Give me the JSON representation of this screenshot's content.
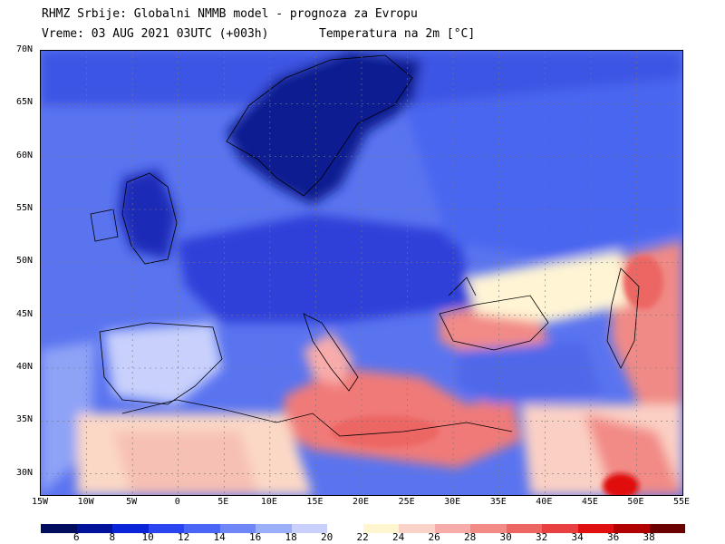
{
  "title": {
    "line1": "RHMZ Srbije: Globalni NMMB model - prognoza za Evropu",
    "line2": "Vreme: 03 AUG 2021 03UTC (+003h)",
    "variable": "Temperatura na 2m [°C]"
  },
  "map": {
    "lon_labels": [
      "15W",
      "10W",
      "5W",
      "0",
      "5E",
      "10E",
      "15E",
      "20E",
      "25E",
      "30E",
      "35E",
      "40E",
      "45E",
      "50E",
      "55E"
    ],
    "lat_labels": [
      "70N",
      "65N",
      "60N",
      "55N",
      "50N",
      "45N",
      "40N",
      "35N",
      "30N"
    ],
    "lon_range": [
      -15,
      55
    ],
    "lat_range": [
      28,
      70
    ],
    "gridlines": true
  },
  "legend": {
    "labels": [
      "6",
      "8",
      "10",
      "12",
      "14",
      "16",
      "18",
      "20",
      "22",
      "24",
      "26",
      "28",
      "30",
      "32",
      "34",
      "36",
      "38"
    ],
    "colors": [
      "#000d5f",
      "#00129a",
      "#0a24d8",
      "#2a45f0",
      "#4a66f4",
      "#6e86f6",
      "#9aaef9",
      "#c8d0fb",
      "#ffffff",
      "#fff6d0",
      "#fbd2c8",
      "#f8acaa",
      "#f28a86",
      "#ec6664",
      "#e84040",
      "#e01010",
      "#b00000",
      "#6a0000"
    ]
  },
  "colors": {
    "sea": "#5a74f0",
    "land_cold": "#2e40d8",
    "scandinavia": "#0a1a90",
    "hot": "#f07a78",
    "warm": "#fbd0c4",
    "pale": "#fff4d4"
  }
}
